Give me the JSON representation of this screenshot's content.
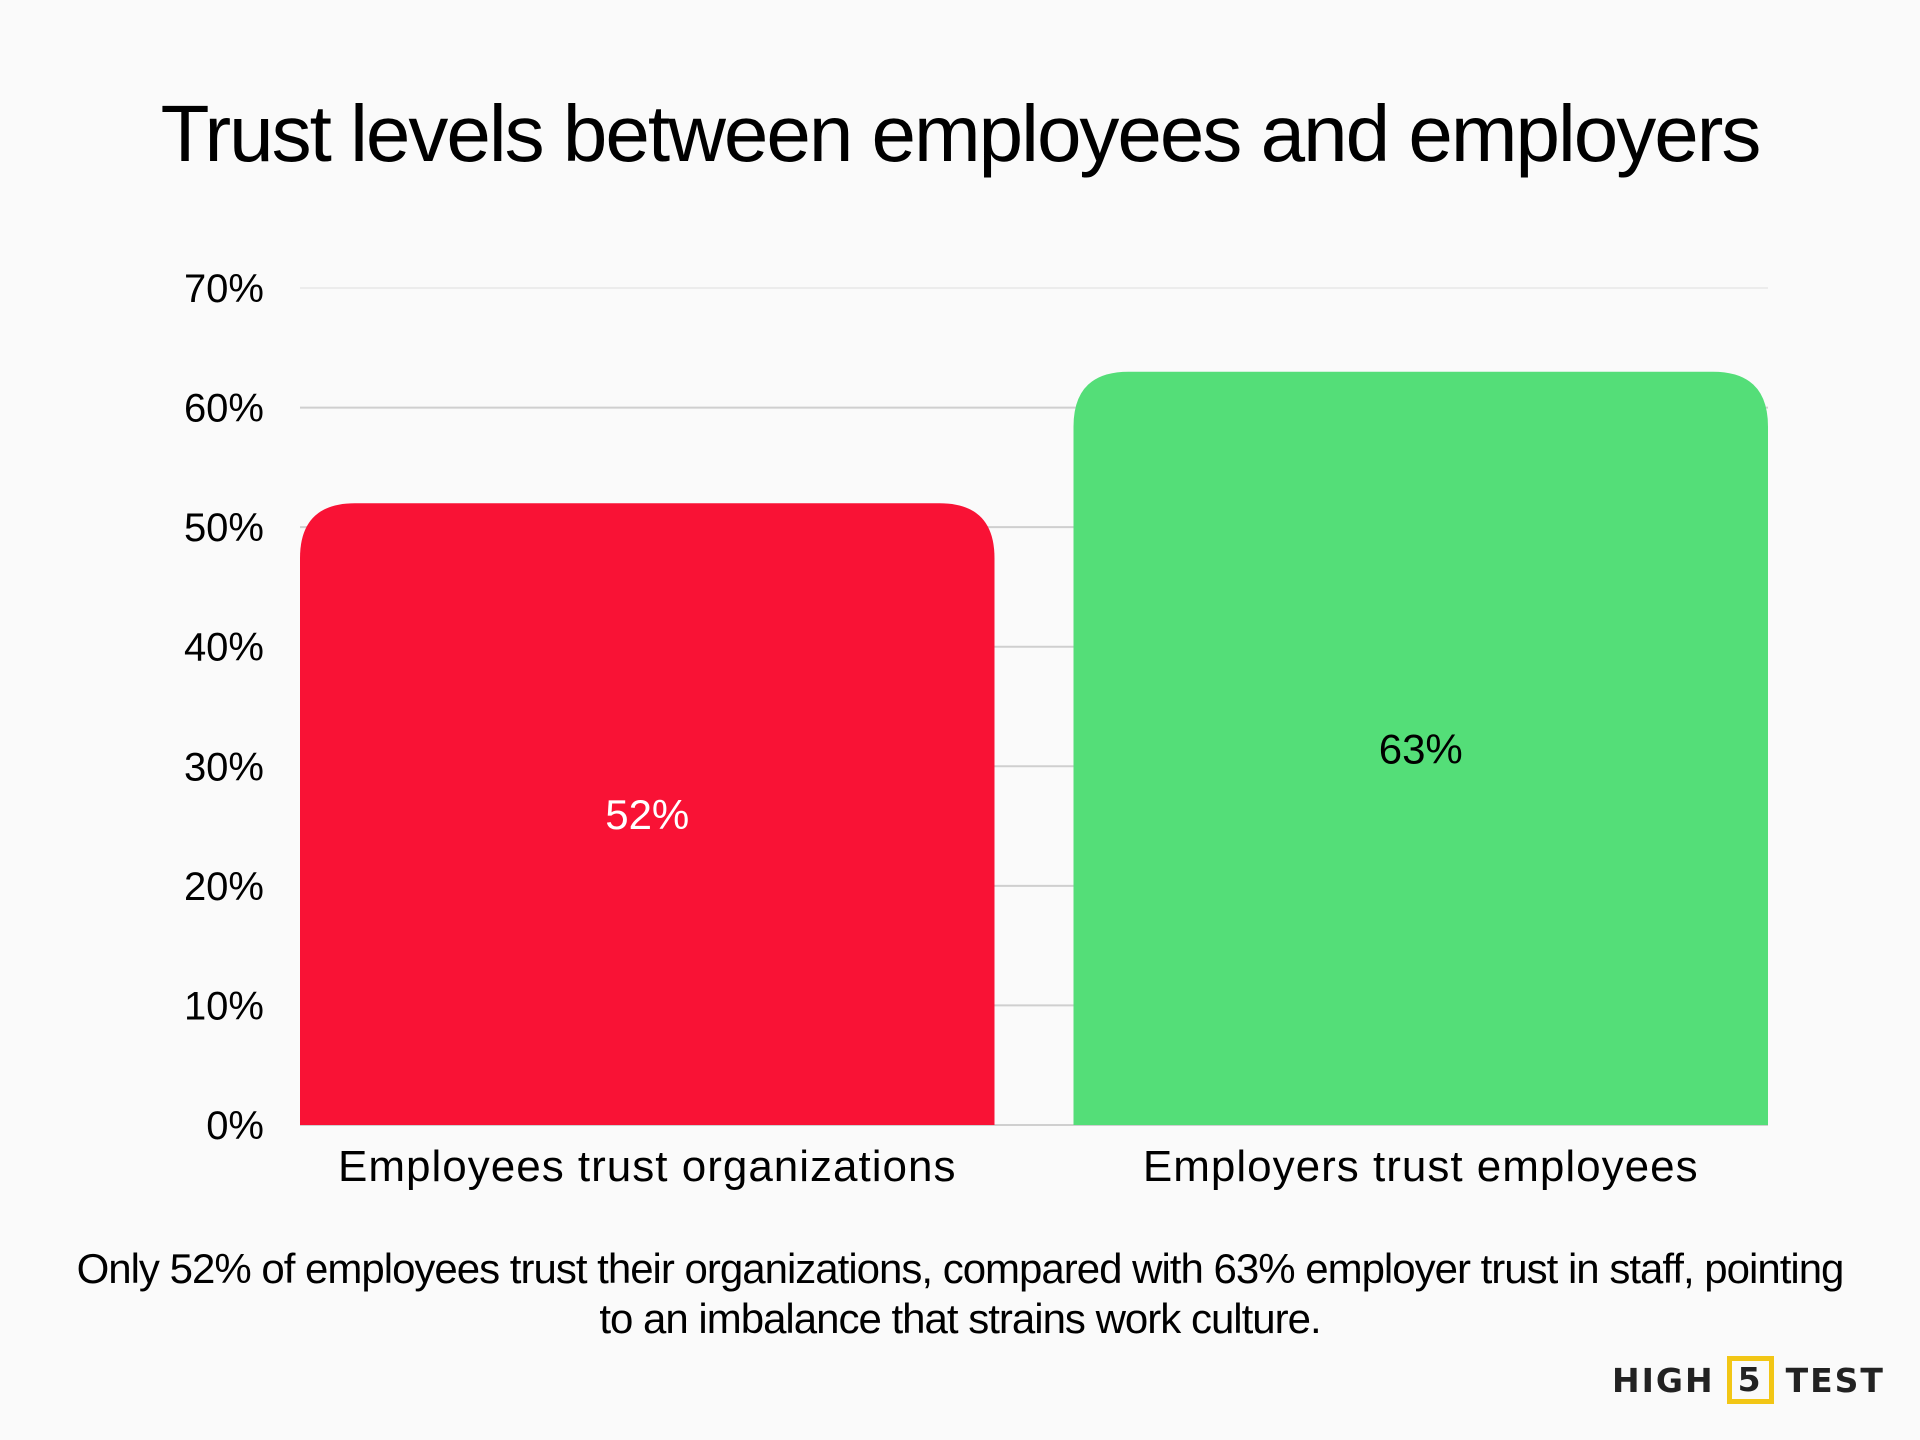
{
  "chart_data": {
    "type": "bar",
    "title": "Trust levels between employees and employers",
    "categories": [
      "Employees trust organizations",
      "Employers trust employees"
    ],
    "values": [
      52,
      63
    ],
    "data_labels": [
      "52%",
      "63%"
    ],
    "colors": [
      "#F91235",
      "#54DE78"
    ],
    "data_label_colors": [
      "#FFFFFF",
      "#000000"
    ],
    "ylim": [
      0,
      70
    ],
    "yticks": [
      0,
      10,
      20,
      30,
      40,
      50,
      60,
      70
    ],
    "ytick_labels": [
      "0%",
      "10%",
      "20%",
      "30%",
      "40%",
      "50%",
      "60%",
      "70%"
    ],
    "xlabel": "",
    "ylabel": "",
    "grid": true,
    "legend": "none"
  },
  "caption": "Only 52% of employees trust their organizations, compared with 63% employer trust in staff, pointing to an imbalance that strains work culture.",
  "logo": {
    "left": "HIGH",
    "box": "5",
    "right": "TEST",
    "accent": "#F2C615"
  }
}
